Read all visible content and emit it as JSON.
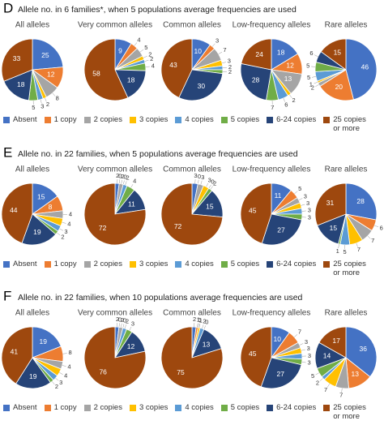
{
  "chart_data": [
    {
      "type": "pie",
      "letter": "D",
      "title": "Allele no. in 6 families*, when 5 populations average frequencies are used",
      "categories": [
        "Absent",
        "1 copy",
        "2 copies",
        "3 copies",
        "4 copies",
        "5 copies",
        "6-24 copies",
        "25 copies or more"
      ],
      "colors": [
        "#4472c4",
        "#ed7d31",
        "#a5a5a5",
        "#ffc000",
        "#5b9bd5",
        "#70ad47",
        "#264478",
        "#9e480e"
      ],
      "pies": [
        {
          "title": "All alleles",
          "values": [
            25,
            12,
            8,
            2,
            3,
            5,
            18,
            33
          ]
        },
        {
          "title": "Very common alleles",
          "values": [
            9,
            4,
            5,
            2,
            2,
            4,
            18,
            58
          ]
        },
        {
          "title": "Common alleles",
          "values": [
            10,
            3,
            7,
            3,
            2,
            2,
            30,
            43
          ]
        },
        {
          "title": "Low-frequency alleles",
          "values": [
            18,
            12,
            13,
            2,
            6,
            7,
            28,
            24
          ]
        },
        {
          "title": "Rare alleles",
          "values": [
            46,
            20,
            2,
            1,
            5,
            5,
            6,
            15
          ]
        }
      ]
    },
    {
      "type": "pie",
      "letter": "E",
      "title": "Allele no. in 22 families, when 5 populations average frequencies are used",
      "categories": [
        "Absent",
        "1 copy",
        "2 copies",
        "3 copies",
        "4 copies",
        "5 copies",
        "6-24 copies",
        "25 copies or more"
      ],
      "colors": [
        "#4472c4",
        "#ed7d31",
        "#a5a5a5",
        "#ffc000",
        "#5b9bd5",
        "#70ad47",
        "#264478",
        "#9e480e"
      ],
      "pies": [
        {
          "title": "All alleles",
          "values": [
            15,
            8,
            4,
            4,
            3,
            2,
            19,
            44
          ]
        },
        {
          "title": "Very common alleles",
          "values": [
            2,
            0,
            2,
            0,
            2,
            4,
            11,
            72
          ]
        },
        {
          "title": "Common alleles",
          "values": [
            3,
            0,
            3,
            3,
            0,
            2,
            15,
            72
          ]
        },
        {
          "title": "Low-frequency alleles",
          "values": [
            11,
            5,
            3,
            3,
            3,
            3,
            27,
            45
          ]
        },
        {
          "title": "Rare alleles",
          "values": [
            28,
            6,
            7,
            7,
            5,
            1,
            15,
            31
          ]
        }
      ]
    },
    {
      "type": "pie",
      "letter": "F",
      "title": "Allele no. in 22 families, when 10 populations average frequencies are used",
      "categories": [
        "Absent",
        "1 copy",
        "2 copies",
        "3 copies",
        "4 copies",
        "5 copies",
        "6-24 copies",
        "25 copies or more"
      ],
      "colors": [
        "#4472c4",
        "#ed7d31",
        "#a5a5a5",
        "#ffc000",
        "#5b9bd5",
        "#70ad47",
        "#264478",
        "#9e480e"
      ],
      "pies": [
        {
          "title": "All alleles",
          "values": [
            19,
            8,
            4,
            4,
            3,
            2,
            19,
            41
          ]
        },
        {
          "title": "Very common alleles",
          "values": [
            2,
            0,
            2,
            0,
            2,
            3,
            12,
            76
          ]
        },
        {
          "title": "Common alleles",
          "values": [
            2,
            1,
            0,
            1,
            2,
            0,
            13,
            75
          ]
        },
        {
          "title": "Low-frequency alleles",
          "values": [
            10,
            7,
            3,
            3,
            3,
            3,
            27,
            45
          ]
        },
        {
          "title": "Rare alleles",
          "values": [
            36,
            13,
            7,
            7,
            2,
            5,
            14,
            17
          ]
        }
      ]
    }
  ]
}
